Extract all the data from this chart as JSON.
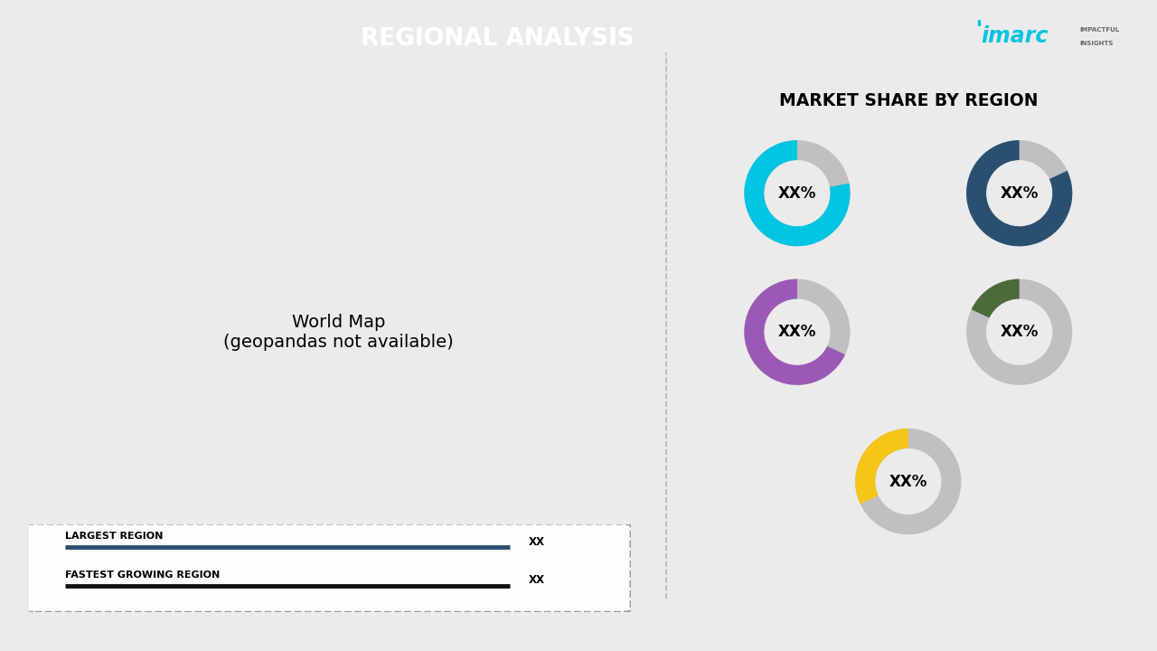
{
  "title": "REGIONAL ANALYSIS",
  "title_bg_color": "#2e5f82",
  "title_text_color": "#ffffff",
  "bg_color": "#ebebeb",
  "divider_color": "#aaaaaa",
  "market_share_title": "MARKET SHARE BY REGION",
  "donuts": [
    {
      "label": "XX%",
      "color": "#00c5e3",
      "value": 0.78
    },
    {
      "label": "XX%",
      "color": "#2a5070",
      "value": 0.82
    },
    {
      "label": "XX%",
      "color": "#9b59b6",
      "value": 0.68
    },
    {
      "label": "XX%",
      "color": "#4a6b3a",
      "value": 0.18
    },
    {
      "label": "XX%",
      "color": "#f5c518",
      "value": 0.32
    }
  ],
  "donut_bg_color": "#c0c0c0",
  "legend_items": [
    {
      "label": "LARGEST REGION",
      "value": "XX",
      "color": "#2a5070"
    },
    {
      "label": "FASTEST GROWING REGION",
      "value": "XX",
      "color": "#111111"
    }
  ],
  "region_colors": {
    "north_america": "#00c5e3",
    "latin_america": "#4a6b3a",
    "europe": "#2a5070",
    "asia_russia": "#2a5070",
    "middle_east_africa": "#f5c518",
    "asia_pacific": "#9b59b6"
  }
}
